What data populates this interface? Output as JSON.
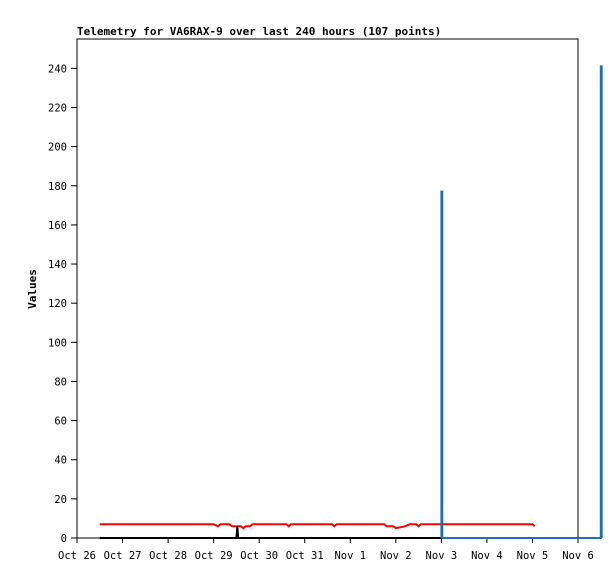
{
  "chart_data": {
    "type": "line",
    "title": "Telemetry for VA6RAX-9 over last 240 hours (107 points)",
    "ylabel": "Values",
    "xlabel": "",
    "x_ticks": [
      "Oct 26",
      "Oct 27",
      "Oct 28",
      "Oct 29",
      "Oct 30",
      "Oct 31",
      "Nov 1",
      "Nov 2",
      "Nov 3",
      "Nov 4",
      "Nov 5",
      "Nov 6"
    ],
    "ylim": [
      0,
      255
    ],
    "y_ticks": [
      0,
      20,
      40,
      60,
      80,
      100,
      120,
      140,
      160,
      180,
      200,
      220,
      240
    ],
    "grid": false,
    "series": [
      {
        "color": "#ff0000",
        "values": [
          [
            0.5,
            7
          ],
          [
            3.0,
            7
          ],
          [
            3.1,
            6
          ],
          [
            3.15,
            7
          ],
          [
            3.35,
            7
          ],
          [
            3.4,
            6
          ],
          [
            3.6,
            6
          ],
          [
            3.65,
            5
          ],
          [
            3.7,
            6
          ],
          [
            3.8,
            6
          ],
          [
            3.85,
            7
          ],
          [
            4.6,
            7
          ],
          [
            4.65,
            6
          ],
          [
            4.7,
            7
          ],
          [
            5.6,
            7
          ],
          [
            5.65,
            6
          ],
          [
            5.7,
            7
          ],
          [
            6.75,
            7
          ],
          [
            6.8,
            6
          ],
          [
            6.95,
            6
          ],
          [
            7.0,
            5
          ],
          [
            7.2,
            6
          ],
          [
            7.3,
            7
          ],
          [
            7.45,
            7
          ],
          [
            7.5,
            6
          ],
          [
            7.55,
            7
          ],
          [
            10.0,
            7
          ],
          [
            10.05,
            6
          ]
        ]
      },
      {
        "color": "#000000",
        "values": [
          [
            0.5,
            0
          ],
          [
            3.5,
            0
          ],
          [
            3.52,
            6
          ],
          [
            3.54,
            0
          ],
          [
            10.1,
            0
          ]
        ]
      },
      {
        "color": "#1f6fb4",
        "values": [
          [
            8.0,
            0
          ],
          [
            8.0,
            177
          ],
          [
            8.02,
            177
          ],
          [
            8.02,
            0
          ],
          [
            11.5,
            0
          ],
          [
            11.5,
            241
          ],
          [
            11.52,
            241
          ],
          [
            11.52,
            0
          ]
        ]
      }
    ]
  }
}
